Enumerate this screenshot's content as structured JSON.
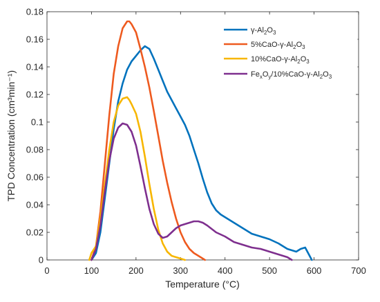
{
  "chart_data": {
    "type": "line",
    "title": "",
    "xlabel": "Temperature (°C)",
    "ylabel": "TPD Concentration (cm³min⁻¹)",
    "xlim": [
      0,
      700
    ],
    "ylim": [
      0,
      0.18
    ],
    "xticks": [
      0,
      100,
      200,
      300,
      400,
      500,
      600,
      700
    ],
    "yticks": [
      0,
      0.02,
      0.04,
      0.06,
      0.08,
      0.1,
      0.12,
      0.14,
      0.16,
      0.18
    ],
    "xtick_labels": [
      "0",
      "100",
      "200",
      "300",
      "400",
      "500",
      "600",
      "700"
    ],
    "ytick_labels": [
      "0",
      "0.02",
      "0.04",
      "0.06",
      "0.08",
      "0.1",
      "0.12",
      "0.14",
      "0.16",
      "0.18"
    ],
    "grid": false,
    "legend_position": "top-right",
    "series": [
      {
        "name": "γ-Al2O3",
        "legend": {
          "pre": "γ-Al",
          "s1": "2",
          "mid": "O",
          "s2": "3"
        },
        "color": "#0072BD",
        "x": [
          100,
          110,
          120,
          130,
          140,
          150,
          160,
          170,
          180,
          190,
          200,
          210,
          220,
          230,
          240,
          250,
          260,
          270,
          280,
          290,
          300,
          310,
          320,
          330,
          340,
          350,
          360,
          370,
          380,
          390,
          400,
          420,
          440,
          460,
          480,
          500,
          520,
          540,
          560,
          570,
          580,
          590,
          595
        ],
        "y": [
          0.0,
          0.005,
          0.02,
          0.045,
          0.07,
          0.095,
          0.115,
          0.128,
          0.138,
          0.144,
          0.148,
          0.152,
          0.155,
          0.153,
          0.146,
          0.138,
          0.13,
          0.122,
          0.116,
          0.11,
          0.104,
          0.098,
          0.09,
          0.08,
          0.07,
          0.059,
          0.049,
          0.041,
          0.036,
          0.033,
          0.031,
          0.027,
          0.023,
          0.019,
          0.017,
          0.015,
          0.012,
          0.008,
          0.006,
          0.008,
          0.009,
          0.003,
          0.0
        ]
      },
      {
        "name": "5%CaO-γ-Al2O3",
        "legend": {
          "pre": "5%CaO-γ-Al",
          "s1": "2",
          "mid": "O",
          "s2": "3"
        },
        "color": "#EE5A1F",
        "x": [
          100,
          110,
          120,
          130,
          140,
          150,
          160,
          170,
          180,
          185,
          190,
          200,
          210,
          220,
          230,
          240,
          250,
          260,
          270,
          280,
          290,
          300,
          310,
          320,
          330,
          340,
          350,
          355
        ],
        "y": [
          0.0,
          0.01,
          0.035,
          0.07,
          0.105,
          0.135,
          0.155,
          0.168,
          0.173,
          0.173,
          0.171,
          0.165,
          0.153,
          0.14,
          0.125,
          0.108,
          0.09,
          0.072,
          0.056,
          0.042,
          0.03,
          0.02,
          0.013,
          0.008,
          0.005,
          0.003,
          0.001,
          0.0
        ]
      },
      {
        "name": "10%CaO-γ-Al2O3",
        "legend": {
          "pre": "10%CaO-γ-Al",
          "s1": "2",
          "mid": "O",
          "s2": "3"
        },
        "color": "#F7B600",
        "x": [
          95,
          100,
          110,
          120,
          130,
          140,
          150,
          160,
          170,
          180,
          185,
          190,
          200,
          210,
          220,
          230,
          240,
          250,
          260,
          270,
          280,
          290,
          300,
          310
        ],
        "y": [
          0.0,
          0.005,
          0.01,
          0.03,
          0.055,
          0.08,
          0.1,
          0.112,
          0.117,
          0.118,
          0.116,
          0.113,
          0.106,
          0.093,
          0.075,
          0.055,
          0.037,
          0.022,
          0.012,
          0.006,
          0.003,
          0.002,
          0.001,
          0.0
        ]
      },
      {
        "name": "FexOy/10%CaO-γ-Al2O3",
        "legend": {
          "pre": "Fe",
          "s1": "x",
          "mid": "O",
          "s2": "y",
          "post": "/10%CaO-γ-Al",
          "s3": "2",
          "mid2": "O",
          "s4": "3"
        },
        "color": "#7E2F8E",
        "x": [
          100,
          110,
          120,
          130,
          140,
          150,
          160,
          170,
          180,
          190,
          200,
          210,
          220,
          230,
          240,
          250,
          260,
          270,
          280,
          290,
          300,
          310,
          320,
          330,
          340,
          350,
          360,
          380,
          400,
          420,
          440,
          460,
          480,
          500,
          520,
          540,
          550
        ],
        "y": [
          0.0,
          0.008,
          0.025,
          0.05,
          0.072,
          0.088,
          0.096,
          0.099,
          0.098,
          0.093,
          0.083,
          0.068,
          0.052,
          0.037,
          0.026,
          0.019,
          0.016,
          0.017,
          0.02,
          0.023,
          0.025,
          0.026,
          0.027,
          0.028,
          0.028,
          0.027,
          0.025,
          0.02,
          0.017,
          0.013,
          0.011,
          0.009,
          0.008,
          0.006,
          0.004,
          0.002,
          0.0
        ]
      }
    ]
  }
}
